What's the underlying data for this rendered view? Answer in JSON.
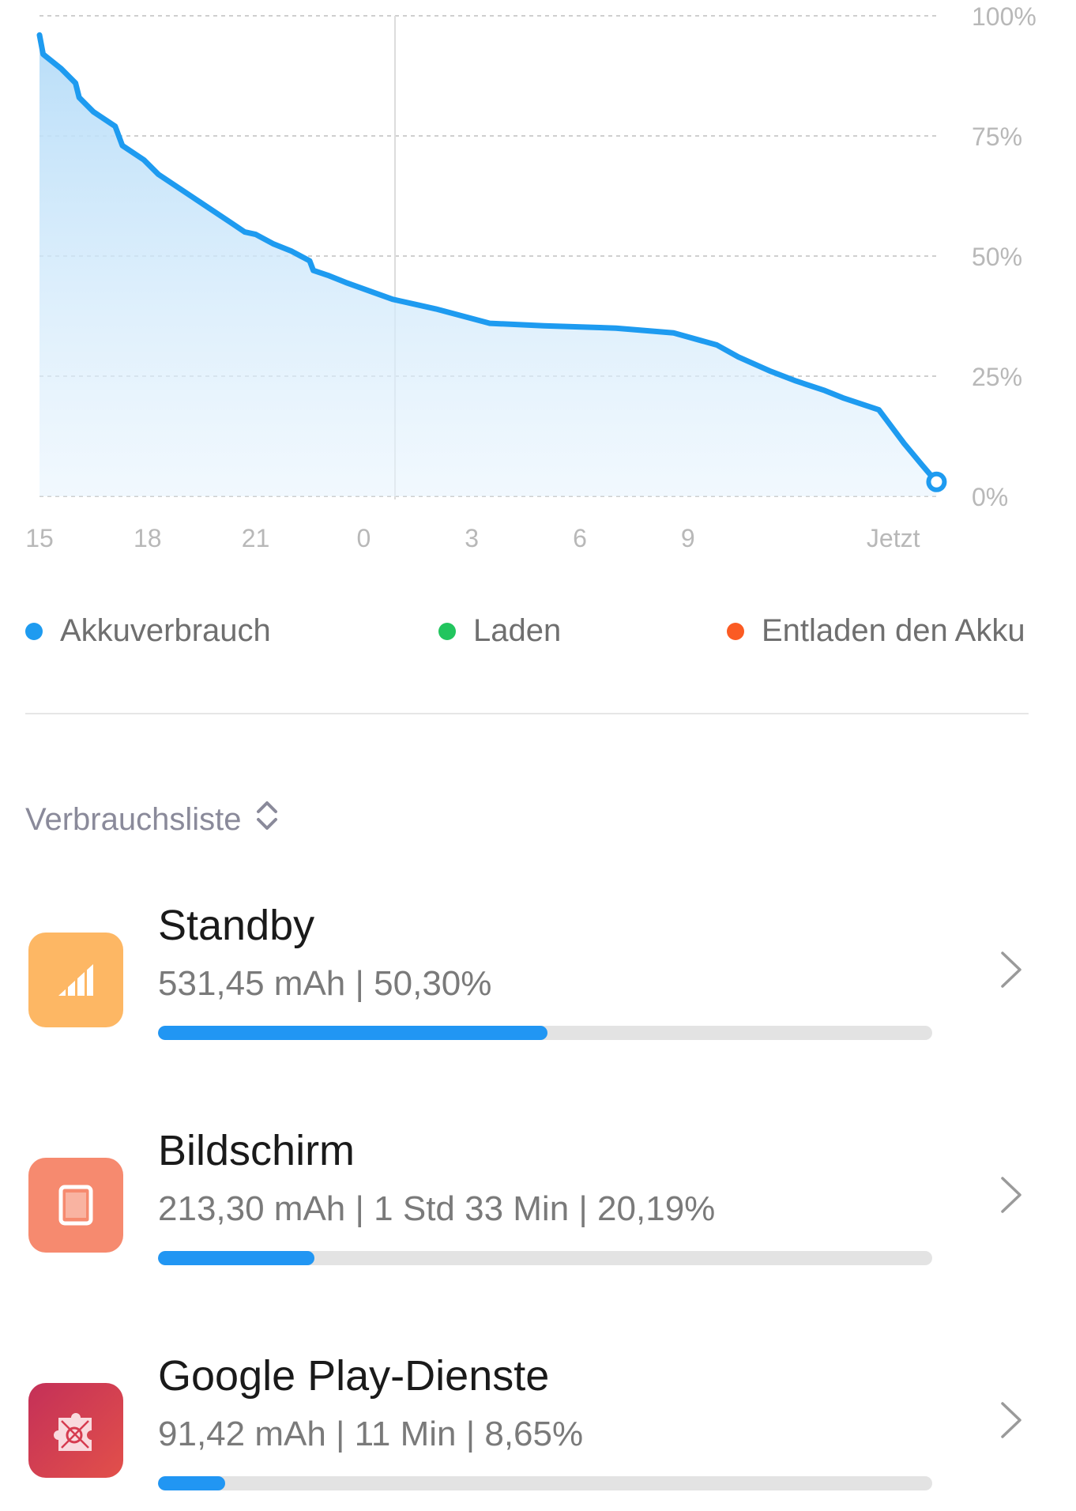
{
  "chart_data": {
    "type": "area",
    "x_labels": [
      "15",
      "18",
      "21",
      "0",
      "3",
      "6",
      "9",
      "Jetzt"
    ],
    "y_labels": [
      "100%",
      "75%",
      "50%",
      "25%",
      "0%"
    ],
    "ylim": [
      0,
      100
    ],
    "grid": true,
    "series": [
      {
        "name": "Akkuverbrauch",
        "color": "#1e9bf0",
        "points": [
          [
            15.0,
            96
          ],
          [
            15.1,
            92
          ],
          [
            15.6,
            89
          ],
          [
            16.0,
            86
          ],
          [
            16.1,
            83
          ],
          [
            16.5,
            80
          ],
          [
            17.1,
            77
          ],
          [
            17.3,
            73
          ],
          [
            17.9,
            70
          ],
          [
            18.3,
            67
          ],
          [
            19.3,
            62
          ],
          [
            20.3,
            57
          ],
          [
            20.7,
            55
          ],
          [
            21.0,
            54.5
          ],
          [
            21.5,
            52.5
          ],
          [
            22.0,
            51
          ],
          [
            22.5,
            49
          ],
          [
            22.6,
            47
          ],
          [
            23.0,
            46
          ],
          [
            23.5,
            44.5
          ],
          [
            24.8,
            41
          ],
          [
            26.0,
            39
          ],
          [
            27.5,
            36
          ],
          [
            29.0,
            35.5
          ],
          [
            31.0,
            35
          ],
          [
            32.6,
            34
          ],
          [
            33.8,
            31.5
          ],
          [
            34.4,
            29
          ],
          [
            35.3,
            26
          ],
          [
            36.0,
            24
          ],
          [
            36.8,
            22
          ],
          [
            37.3,
            20.5
          ],
          [
            38.3,
            18
          ],
          [
            38.5,
            16
          ],
          [
            39.0,
            11
          ],
          [
            39.5,
            6.5
          ],
          [
            39.9,
            3
          ]
        ]
      }
    ]
  },
  "legend": [
    {
      "label": "Akkuverbrauch",
      "color": "#1e9bf0"
    },
    {
      "label": "Laden",
      "color": "#22c55e"
    },
    {
      "label": "Entladen den Akku",
      "color": "#fb5b23"
    }
  ],
  "list": {
    "sort_label": "Verbrauchsliste",
    "sort_icon": "sort-updown-icon",
    "items": [
      {
        "title": "Standby",
        "subtitle": "531,45 mAh | 50,30%",
        "progress": 0.503,
        "icon": "signal-bars-icon",
        "icon_color": "#fdb764"
      },
      {
        "title": "Bildschirm",
        "subtitle": "213,30 mAh | 1 Std 33 Min  | 20,19%",
        "progress": 0.2019,
        "icon": "screen-icon",
        "icon_color": "#f68a6f"
      },
      {
        "title": "Google Play-Dienste",
        "subtitle": "91,42 mAh | 11 Min  | 8,65%",
        "progress": 0.0865,
        "icon": "google-play-services-icon",
        "icon_color": "#d63b4f"
      }
    ]
  }
}
